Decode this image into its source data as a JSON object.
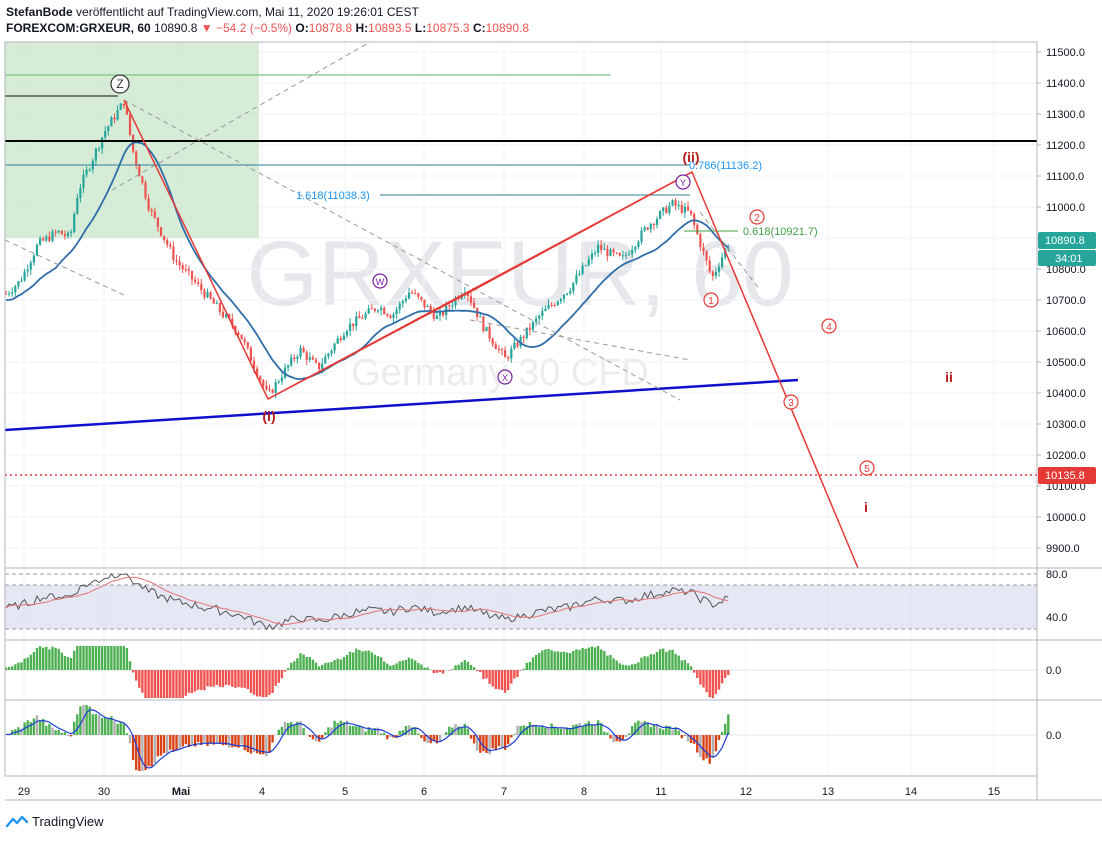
{
  "header": {
    "line1_author": "StefanBode",
    "line1_rest": " veröffentlicht auf TradingView.com, Mai 11, 2020 19:26:01 CEST",
    "symbol": "FOREXCOM:GRXEUR, 60",
    "last": "10890.8",
    "change": "−54.2 (−0.5%)",
    "o_label": "O:",
    "o": "10878.8",
    "h_label": "H:",
    "h": "10893.5",
    "l_label": "L:",
    "l": "10875.3",
    "c_label": "C:",
    "c": "10890.8"
  },
  "footer": {
    "brand": "TradingView"
  },
  "watermark": {
    "symbol": "GRXEUR, 60",
    "name": "Germany 30 CFD"
  },
  "colors": {
    "up": "#26a69a",
    "down": "#ef5350",
    "ma": "#2f6ea8",
    "wave": "#e53935",
    "trend": "#1010cc",
    "fib": "#2e7d9b",
    "green_zone": "#c8e6c9",
    "rsi_band": "#d1d4ec",
    "hist_up": "#4caf50",
    "hist_down": "#ef5350",
    "macd_dn": "#d84315",
    "macd_gray": "#b0b0b0"
  },
  "chart_data": {
    "type": "candlestick",
    "instrument": "FOREXCOM:GRXEUR, 60",
    "y_axis": {
      "ticks": [
        11500,
        11400,
        11300,
        11200,
        11100,
        11000,
        10900,
        10800,
        10700,
        10600,
        10500,
        10400,
        10300,
        10200,
        10100,
        10000,
        9900
      ],
      "range": [
        9870,
        11530
      ]
    },
    "x_axis": {
      "ticks": [
        "29",
        "30",
        "Mai",
        "4",
        "5",
        "6",
        "7",
        "8",
        "11",
        "12",
        "13",
        "14",
        "15"
      ]
    },
    "price_labels": {
      "last": "10890.8",
      "countdown": "34:01",
      "level": "10135.8"
    },
    "fib_labels": [
      "0.786(11136.2)",
      "1.618(11038.3)",
      "0.618(10921.7)"
    ],
    "wave_labels": {
      "z": "Z",
      "i_paren": "(i)",
      "ii_paren": "(ii)",
      "w": "W",
      "x": "X",
      "y": "Y",
      "n1": "1",
      "n2": "2",
      "n3": "3",
      "n4": "4",
      "n5": "5",
      "ii_small": "ii",
      "i_small": "i"
    },
    "key_points": [
      {
        "label": "Z",
        "x": "30",
        "y": 11340
      },
      {
        "label": "(i)",
        "x": "4",
        "y": 10380
      },
      {
        "label": "(ii)",
        "x": "11",
        "y": 11110
      },
      {
        "label": "projection",
        "x": "13",
        "y": 9880
      }
    ],
    "horizontal_levels": [
      11210,
      11136.2,
      11038.3,
      10921.7,
      10135.8
    ],
    "rsi": {
      "ticks": [
        "80.0",
        "40.0"
      ]
    },
    "ao": {
      "ticks": [
        "0.0"
      ]
    },
    "macd": {
      "ticks": [
        "0.0"
      ]
    }
  }
}
